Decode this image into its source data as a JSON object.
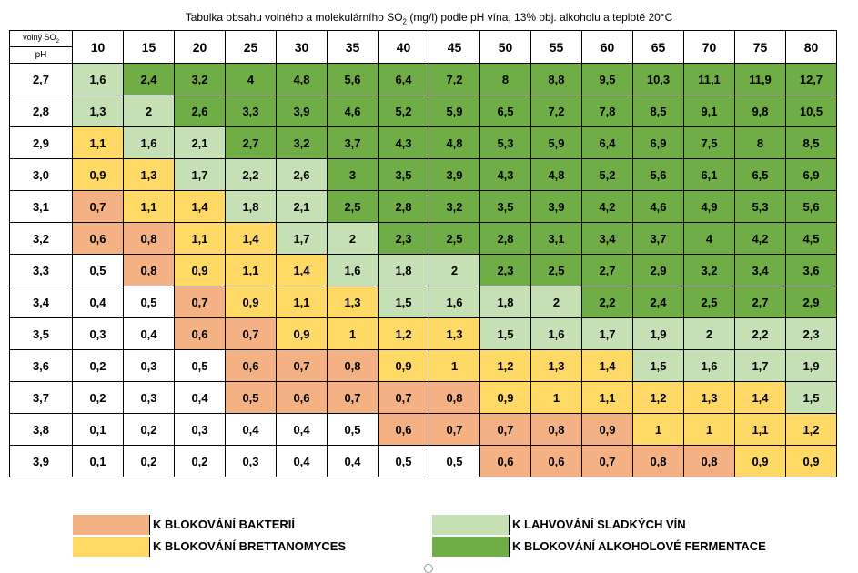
{
  "title": {
    "before": "Tabulka obsahu volného a molekulárního SO",
    "sub": "2",
    "after": " (mg/l) podle pH vína, 13% obj. alkoholu a teplotě 20°C"
  },
  "corner": {
    "top": "volný SO",
    "top_sub": "2",
    "bottom": "pH"
  },
  "colors": {
    "w": "#ffffff",
    "o": "#f4b183",
    "y": "#ffd966",
    "l": "#c5e0b4",
    "g": "#70ad47"
  },
  "columns": [
    "10",
    "15",
    "20",
    "25",
    "30",
    "35",
    "40",
    "45",
    "50",
    "55",
    "60",
    "65",
    "70",
    "75",
    "80"
  ],
  "rows": [
    {
      "ph": "2,7",
      "values": [
        "1,6",
        "2,4",
        "3,2",
        "4",
        "4,8",
        "5,6",
        "6,4",
        "7,2",
        "8",
        "8,8",
        "9,5",
        "10,3",
        "11,1",
        "11,9",
        "12,7"
      ],
      "colors": "lgggggggggggggg"
    },
    {
      "ph": "2,8",
      "values": [
        "1,3",
        "2",
        "2,6",
        "3,3",
        "3,9",
        "4,6",
        "5,2",
        "5,9",
        "6,5",
        "7,2",
        "7,8",
        "8,5",
        "9,1",
        "9,8",
        "10,5"
      ],
      "colors": "llggggggggggggg"
    },
    {
      "ph": "2,9",
      "values": [
        "1,1",
        "1,6",
        "2,1",
        "2,7",
        "3,2",
        "3,7",
        "4,3",
        "4,8",
        "5,3",
        "5,9",
        "6,4",
        "6,9",
        "7,5",
        "8",
        "8,5"
      ],
      "colors": "yllgggggggggggg"
    },
    {
      "ph": "3,0",
      "values": [
        "0,9",
        "1,3",
        "1,7",
        "2,2",
        "2,6",
        "3",
        "3,5",
        "3,9",
        "4,3",
        "4,8",
        "5,2",
        "5,6",
        "6,1",
        "6,5",
        "6,9"
      ],
      "colors": "yylllgggggggggg"
    },
    {
      "ph": "3,1",
      "values": [
        "0,7",
        "1,1",
        "1,4",
        "1,8",
        "2,1",
        "2,5",
        "2,8",
        "3,2",
        "3,5",
        "3,9",
        "4,2",
        "4,6",
        "4,9",
        "5,3",
        "5,6"
      ],
      "colors": "oyyllgggggggggg"
    },
    {
      "ph": "3,2",
      "values": [
        "0,6",
        "0,8",
        "1,1",
        "1,4",
        "1,7",
        "2",
        "2,3",
        "2,5",
        "2,8",
        "3,1",
        "3,4",
        "3,7",
        "4",
        "4,2",
        "4,5"
      ],
      "colors": "ooyyllggggggggg"
    },
    {
      "ph": "3,3",
      "values": [
        "0,5",
        "0,8",
        "0,9",
        "1,1",
        "1,4",
        "1,6",
        "1,8",
        "2",
        "2,3",
        "2,5",
        "2,7",
        "2,9",
        "3,2",
        "3,4",
        "3,6"
      ],
      "colors": "woyyylllggggggg"
    },
    {
      "ph": "3,4",
      "values": [
        "0,4",
        "0,5",
        "0,7",
        "0,9",
        "1,1",
        "1,3",
        "1,5",
        "1,6",
        "1,8",
        "2",
        "2,2",
        "2,4",
        "2,5",
        "2,7",
        "2,9"
      ],
      "colors": "wwoyyyllllggggg"
    },
    {
      "ph": "3,5",
      "values": [
        "0,3",
        "0,4",
        "0,6",
        "0,7",
        "0,9",
        "1",
        "1,2",
        "1,3",
        "1,5",
        "1,6",
        "1,7",
        "1,9",
        "2",
        "2,2",
        "2,3"
      ],
      "colors": "wwooyyyylllllll"
    },
    {
      "ph": "3,6",
      "values": [
        "0,2",
        "0,3",
        "0,5",
        "0,6",
        "0,7",
        "0,8",
        "0,9",
        "1",
        "1,2",
        "1,3",
        "1,4",
        "1,5",
        "1,6",
        "1,7",
        "1,9"
      ],
      "colors": "wwwoooyyyyyllll"
    },
    {
      "ph": "3,7",
      "values": [
        "0,2",
        "0,3",
        "0,4",
        "0,5",
        "0,6",
        "0,7",
        "0,7",
        "0,8",
        "0,9",
        "1",
        "1,1",
        "1,2",
        "1,3",
        "1,4",
        "1,5"
      ],
      "colors": "wwwoooooyyyyyyl"
    },
    {
      "ph": "3,8",
      "values": [
        "0,1",
        "0,2",
        "0,3",
        "0,4",
        "0,4",
        "0,5",
        "0,6",
        "0,7",
        "0,7",
        "0,8",
        "0,9",
        "1",
        "1",
        "1,1",
        "1,2"
      ],
      "colors": "wwwwwwoooooyyyy"
    },
    {
      "ph": "3,9",
      "values": [
        "0,1",
        "0,2",
        "0,2",
        "0,3",
        "0,4",
        "0,4",
        "0,5",
        "0,5",
        "0,6",
        "0,6",
        "0,7",
        "0,8",
        "0,8",
        "0,9",
        "0,9"
      ],
      "colors": "wwwwwwwwoooooyy"
    }
  ],
  "legend": [
    {
      "label": "K BLOKOVÁNÍ BAKTERIÍ",
      "color": "#f4b183"
    },
    {
      "label": "K BLOKOVÁNÍ BRETTANOMYCES",
      "color": "#ffd966"
    },
    {
      "label": "K LAHVOVÁNÍ SLADKÝCH VÍN",
      "color": "#c5e0b4"
    },
    {
      "label": "K BLOKOVÁNÍ ALKOHOLOVÉ FERMENTACE",
      "color": "#70ad47"
    }
  ]
}
